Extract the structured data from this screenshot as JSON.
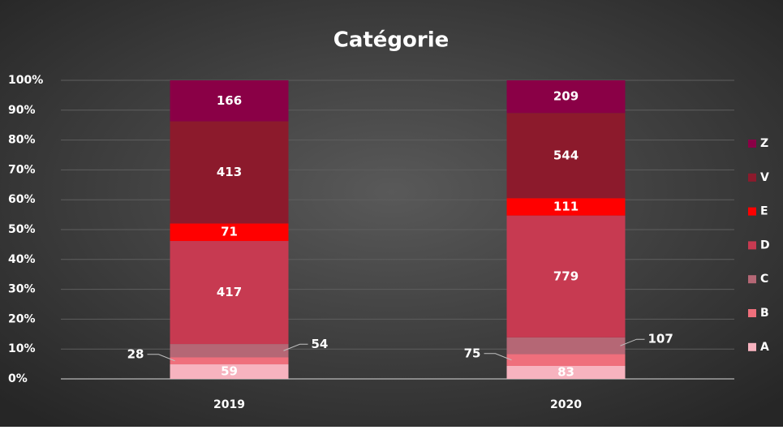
{
  "chart_data": {
    "type": "bar",
    "stacking": "percent",
    "title": "Catégorie",
    "categories": [
      "2019",
      "2020"
    ],
    "series": [
      {
        "name": "A",
        "color": "#f7b3bf",
        "values": [
          59,
          83
        ]
      },
      {
        "name": "B",
        "color": "#ef6f7c",
        "values": [
          28,
          75
        ]
      },
      {
        "name": "C",
        "color": "#b56775",
        "values": [
          54,
          107
        ]
      },
      {
        "name": "D",
        "color": "#c73a51",
        "values": [
          417,
          779
        ]
      },
      {
        "name": "E",
        "color": "#ff0000",
        "values": [
          71,
          111
        ]
      },
      {
        "name": "V",
        "color": "#8c1a2c",
        "values": [
          413,
          544
        ]
      },
      {
        "name": "Z",
        "color": "#8a0046",
        "values": [
          166,
          209
        ]
      }
    ],
    "ylim": [
      0,
      100
    ],
    "yticks": [
      {
        "value": 0,
        "label": "0%"
      },
      {
        "value": 10,
        "label": "10%"
      },
      {
        "value": 20,
        "label": "20%"
      },
      {
        "value": 30,
        "label": "30%"
      },
      {
        "value": 40,
        "label": "40%"
      },
      {
        "value": 50,
        "label": "50%"
      },
      {
        "value": 60,
        "label": "60%"
      },
      {
        "value": 70,
        "label": "70%"
      },
      {
        "value": 80,
        "label": "80%"
      },
      {
        "value": 90,
        "label": "90%"
      },
      {
        "value": 100,
        "label": "100%"
      }
    ],
    "grid": true,
    "legend": "right"
  }
}
